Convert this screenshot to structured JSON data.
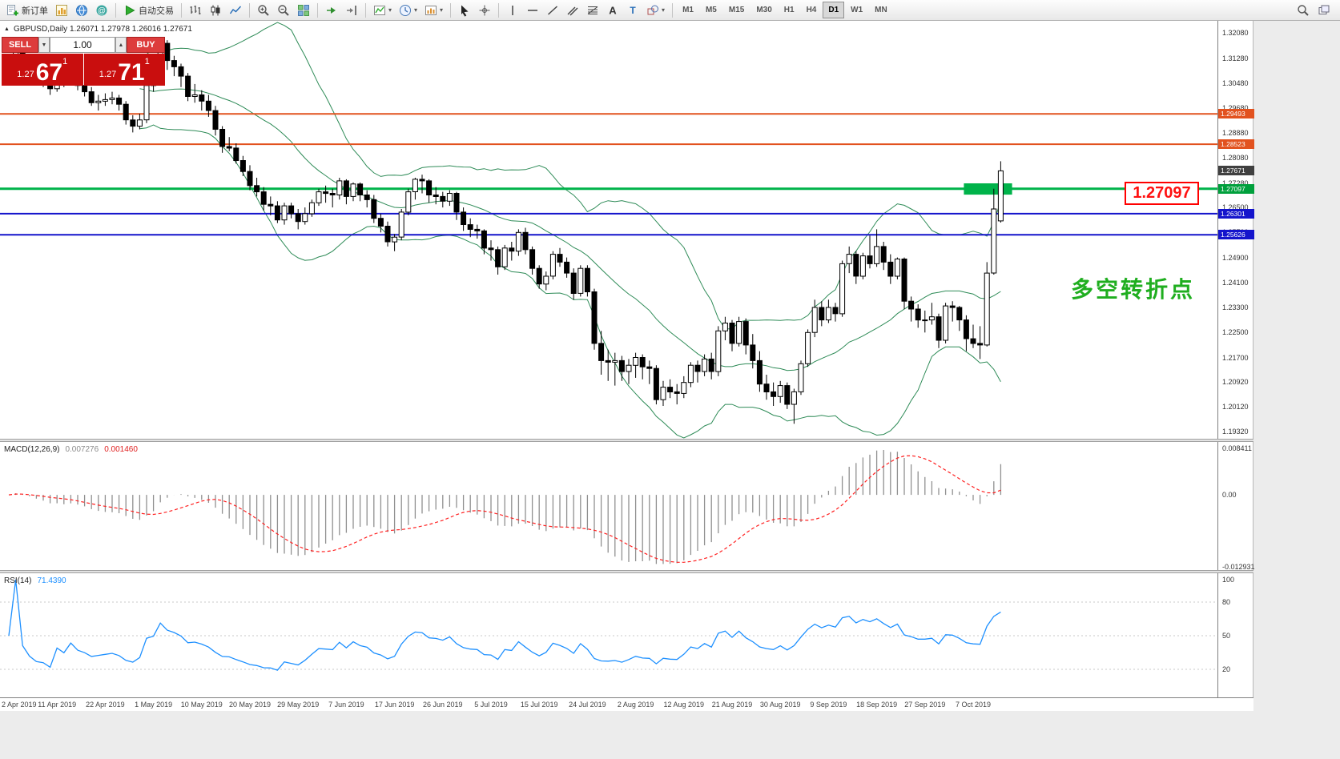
{
  "toolbar": {
    "groups": [
      {
        "items": [
          {
            "icon": "new-order-icon",
            "label": "新订单"
          },
          {
            "icon": "new-chart-icon"
          },
          {
            "icon": "market-depth-icon"
          },
          {
            "icon": "community-icon"
          }
        ]
      },
      {
        "items": [
          {
            "icon": "autotrading-icon",
            "label": "自动交易"
          }
        ]
      },
      {
        "items": [
          {
            "icon": "bar-chart-icon"
          },
          {
            "icon": "candle-chart-icon"
          },
          {
            "icon": "line-chart-icon"
          }
        ]
      },
      {
        "items": [
          {
            "icon": "zoom-in-icon"
          },
          {
            "icon": "zoom-out-icon"
          },
          {
            "icon": "tile-windows-icon"
          }
        ]
      },
      {
        "items": [
          {
            "icon": "auto-scroll-icon"
          },
          {
            "icon": "chart-shift-icon"
          }
        ]
      },
      {
        "items": [
          {
            "icon": "indicators-icon",
            "dropdown": true
          },
          {
            "icon": "periods-icon",
            "dropdown": true
          },
          {
            "icon": "templates-icon",
            "dropdown": true
          }
        ]
      },
      {
        "items": [
          {
            "icon": "cursor-icon"
          },
          {
            "icon": "crosshair-icon"
          }
        ]
      },
      {
        "items": [
          {
            "icon": "vertical-line-icon"
          },
          {
            "icon": "horizontal-line-icon"
          },
          {
            "icon": "trendline-icon"
          },
          {
            "icon": "channel-icon"
          },
          {
            "icon": "fibonacci-icon"
          },
          {
            "icon": "text-icon"
          },
          {
            "icon": "label-icon"
          },
          {
            "icon": "shapes-icon",
            "dropdown": true
          }
        ]
      }
    ],
    "timeframes": [
      "M1",
      "M5",
      "M15",
      "M30",
      "H1",
      "H4",
      "D1",
      "W1",
      "MN"
    ],
    "active_timeframe": "D1",
    "right_icons": [
      "search-icon",
      "windows-icon"
    ]
  },
  "chart": {
    "type": "candlestick",
    "symbol_info": "GBPUSD,Daily  1.26071 1.27978 1.26016 1.27671",
    "trade_panel": {
      "sell": "SELL",
      "buy": "BUY",
      "volume": "1.00",
      "sell_prefix": "1.27",
      "sell_big": "67",
      "sell_sup": "1",
      "buy_prefix": "1.27",
      "buy_big": "71",
      "buy_sup": "1"
    },
    "annotation": {
      "text": "多空转折点",
      "color": "#1fae1f"
    },
    "highlight_label": "1.27097",
    "scale": {
      "top": 1.3247,
      "bottom": 1.191
    },
    "axis_ticks": [
      "1.32080",
      "1.31280",
      "1.30480",
      "1.29680",
      "1.28880",
      "1.28080",
      "1.27280",
      "1.26500",
      "1.25700",
      "1.24900",
      "1.24100",
      "1.23300",
      "1.22500",
      "1.21700",
      "1.20920",
      "1.20120",
      "1.19320"
    ],
    "price_tags": [
      {
        "price": 1.29493,
        "text": "1.29493",
        "bg": "#e2521f"
      },
      {
        "price": 1.28523,
        "text": "1.28523",
        "bg": "#e2521f"
      },
      {
        "price": 1.27671,
        "text": "1.27671",
        "bg": "#404040"
      },
      {
        "price": 1.27097,
        "text": "1.27097",
        "bg": "#00a03c"
      },
      {
        "price": 1.26301,
        "text": "1.26301",
        "bg": "#1414cc"
      },
      {
        "price": 1.25626,
        "text": "1.25626",
        "bg": "#1414cc"
      }
    ],
    "hlines": [
      {
        "price": 1.29493,
        "color": "#e2521f",
        "width": 2
      },
      {
        "price": 1.28523,
        "color": "#e2521f",
        "width": 2
      },
      {
        "price": 1.27097,
        "color": "#00b34a",
        "width": 3
      },
      {
        "price": 1.26301,
        "color": "#1414cc",
        "width": 2
      },
      {
        "price": 1.25626,
        "color": "#1414cc",
        "width": 2
      }
    ],
    "highlight_rect": {
      "i1": 139,
      "i2": 146,
      "p1": 1.2727,
      "p2": 1.2691,
      "color": "#00b34a"
    },
    "bollinger_color": "#2e8b57",
    "x_labels": [
      "2 Apr 2019",
      "11 Apr 2019",
      "22 Apr 2019",
      "1 May 2019",
      "10 May 2019",
      "20 May 2019",
      "29 May 2019",
      "7 Jun 2019",
      "17 Jun 2019",
      "26 Jun 2019",
      "5 Jul 2019",
      "15 Jul 2019",
      "24 Jul 2019",
      "2 Aug 2019",
      "12 Aug 2019",
      "21 Aug 2019",
      "30 Aug 2019",
      "9 Sep 2019",
      "18 Sep 2019",
      "27 Sep 2019",
      "7 Oct 2019"
    ],
    "candles": [
      [
        1.31,
        1.3135,
        1.3075,
        1.312
      ],
      [
        1.312,
        1.3165,
        1.31,
        1.3155
      ],
      [
        1.3155,
        1.316,
        1.3085,
        1.3105
      ],
      [
        1.3105,
        1.312,
        1.306,
        1.308
      ],
      [
        1.308,
        1.31,
        1.3045,
        1.306
      ],
      [
        1.306,
        1.309,
        1.3035,
        1.3055
      ],
      [
        1.3055,
        1.307,
        1.301,
        1.303
      ],
      [
        1.303,
        1.309,
        1.302,
        1.3075
      ],
      [
        1.3075,
        1.3085,
        1.3035,
        1.305
      ],
      [
        1.305,
        1.31,
        1.304,
        1.3085
      ],
      [
        1.3085,
        1.3095,
        1.3025,
        1.304
      ],
      [
        1.304,
        1.306,
        1.3005,
        1.302
      ],
      [
        1.302,
        1.3035,
        1.2975,
        1.2985
      ],
      [
        1.2985,
        1.301,
        1.296,
        1.299
      ],
      [
        1.299,
        1.3015,
        1.2975,
        1.2995
      ],
      [
        1.2995,
        1.302,
        1.298,
        1.3
      ],
      [
        1.3,
        1.301,
        1.296,
        1.298
      ],
      [
        1.298,
        1.299,
        1.2915,
        1.293
      ],
      [
        1.293,
        1.2945,
        1.289,
        1.291
      ],
      [
        1.291,
        1.295,
        1.29,
        1.293
      ],
      [
        1.293,
        1.3045,
        1.292,
        1.304
      ],
      [
        1.304,
        1.3085,
        1.302,
        1.3055
      ],
      [
        1.3055,
        1.319,
        1.3045,
        1.3175
      ],
      [
        1.3175,
        1.3185,
        1.309,
        1.312
      ],
      [
        1.312,
        1.3135,
        1.307,
        1.31
      ],
      [
        1.31,
        1.311,
        1.3035,
        1.307
      ],
      [
        1.307,
        1.308,
        1.299,
        1.3005
      ],
      [
        1.3005,
        1.3045,
        1.2985,
        1.301
      ],
      [
        1.301,
        1.3025,
        1.296,
        1.299
      ],
      [
        1.299,
        1.301,
        1.294,
        1.296
      ],
      [
        1.296,
        1.2975,
        1.288,
        1.29
      ],
      [
        1.29,
        1.291,
        1.2825,
        1.2845
      ],
      [
        1.2845,
        1.2875,
        1.283,
        1.284
      ],
      [
        1.284,
        1.2855,
        1.279,
        1.28
      ],
      [
        1.28,
        1.2815,
        1.275,
        1.2765
      ],
      [
        1.2765,
        1.2785,
        1.2705,
        1.272
      ],
      [
        1.272,
        1.2745,
        1.2685,
        1.27
      ],
      [
        1.27,
        1.2715,
        1.264,
        1.266
      ],
      [
        1.266,
        1.2685,
        1.2625,
        1.2655
      ],
      [
        1.2655,
        1.267,
        1.26,
        1.261
      ],
      [
        1.261,
        1.2665,
        1.2595,
        1.2655
      ],
      [
        1.2655,
        1.2665,
        1.2615,
        1.263
      ],
      [
        1.263,
        1.2645,
        1.258,
        1.2605
      ],
      [
        1.2605,
        1.265,
        1.2595,
        1.263
      ],
      [
        1.263,
        1.2675,
        1.262,
        1.2665
      ],
      [
        1.2665,
        1.271,
        1.2655,
        1.27
      ],
      [
        1.27,
        1.272,
        1.2665,
        1.2695
      ],
      [
        1.2695,
        1.271,
        1.265,
        1.269
      ],
      [
        1.269,
        1.2745,
        1.2675,
        1.2735
      ],
      [
        1.2735,
        1.274,
        1.266,
        1.2685
      ],
      [
        1.2685,
        1.273,
        1.267,
        1.2725
      ],
      [
        1.2725,
        1.273,
        1.267,
        1.269
      ],
      [
        1.269,
        1.2705,
        1.265,
        1.2675
      ],
      [
        1.2675,
        1.269,
        1.26,
        1.2615
      ],
      [
        1.2615,
        1.263,
        1.257,
        1.259
      ],
      [
        1.259,
        1.2605,
        1.2525,
        1.254
      ],
      [
        1.254,
        1.2565,
        1.251,
        1.2555
      ],
      [
        1.2555,
        1.2645,
        1.2545,
        1.2635
      ],
      [
        1.2635,
        1.271,
        1.2625,
        1.27
      ],
      [
        1.27,
        1.2745,
        1.2675,
        1.274
      ],
      [
        1.274,
        1.2755,
        1.2695,
        1.2735
      ],
      [
        1.2735,
        1.274,
        1.2665,
        1.269
      ],
      [
        1.269,
        1.2715,
        1.266,
        1.2685
      ],
      [
        1.2685,
        1.27,
        1.265,
        1.267
      ],
      [
        1.267,
        1.2705,
        1.2655,
        1.2695
      ],
      [
        1.2695,
        1.27,
        1.261,
        1.2635
      ],
      [
        1.2635,
        1.265,
        1.2575,
        1.2595
      ],
      [
        1.2595,
        1.2615,
        1.2555,
        1.258
      ],
      [
        1.258,
        1.2595,
        1.255,
        1.2575
      ],
      [
        1.2575,
        1.258,
        1.25,
        1.252
      ],
      [
        1.252,
        1.2545,
        1.248,
        1.2515
      ],
      [
        1.2515,
        1.2525,
        1.2435,
        1.246
      ],
      [
        1.246,
        1.253,
        1.245,
        1.252
      ],
      [
        1.252,
        1.254,
        1.248,
        1.251
      ],
      [
        1.251,
        1.258,
        1.2495,
        1.257
      ],
      [
        1.257,
        1.2585,
        1.25,
        1.2515
      ],
      [
        1.2515,
        1.2525,
        1.2435,
        1.2455
      ],
      [
        1.2455,
        1.2465,
        1.239,
        1.2405
      ],
      [
        1.2405,
        1.2445,
        1.2385,
        1.243
      ],
      [
        1.243,
        1.251,
        1.242,
        1.25
      ],
      [
        1.25,
        1.252,
        1.246,
        1.2475
      ],
      [
        1.2475,
        1.249,
        1.2425,
        1.244
      ],
      [
        1.244,
        1.2455,
        1.2355,
        1.2375
      ],
      [
        1.2375,
        1.2465,
        1.2365,
        1.2455
      ],
      [
        1.2455,
        1.2465,
        1.2365,
        1.238
      ],
      [
        1.238,
        1.239,
        1.2195,
        1.2215
      ],
      [
        1.2215,
        1.2255,
        1.2115,
        1.216
      ],
      [
        1.216,
        1.2195,
        1.2095,
        1.2155
      ],
      [
        1.2155,
        1.2185,
        1.208,
        1.216
      ],
      [
        1.216,
        1.2175,
        1.2095,
        1.2125
      ],
      [
        1.2125,
        1.2165,
        1.2085,
        1.2145
      ],
      [
        1.2145,
        1.2185,
        1.2105,
        1.217
      ],
      [
        1.217,
        1.218,
        1.21,
        1.214
      ],
      [
        1.214,
        1.216,
        1.2085,
        1.2135
      ],
      [
        1.2135,
        1.2145,
        1.202,
        1.2035
      ],
      [
        1.2035,
        1.2095,
        1.2015,
        1.2075
      ],
      [
        1.2075,
        1.21,
        1.204,
        1.206
      ],
      [
        1.206,
        1.2085,
        1.202,
        1.2055
      ],
      [
        1.2055,
        1.211,
        1.204,
        1.209
      ],
      [
        1.209,
        1.2155,
        1.2075,
        1.2145
      ],
      [
        1.2145,
        1.216,
        1.209,
        1.2125
      ],
      [
        1.2125,
        1.218,
        1.211,
        1.2165
      ],
      [
        1.2165,
        1.2185,
        1.21,
        1.2125
      ],
      [
        1.2125,
        1.227,
        1.211,
        1.2255
      ],
      [
        1.2255,
        1.23,
        1.2225,
        1.228
      ],
      [
        1.228,
        1.229,
        1.219,
        1.2215
      ],
      [
        1.2215,
        1.23,
        1.2205,
        1.2285
      ],
      [
        1.2285,
        1.2295,
        1.218,
        1.221
      ],
      [
        1.221,
        1.2245,
        1.2135,
        1.216
      ],
      [
        1.216,
        1.219,
        1.206,
        1.2085
      ],
      [
        1.2085,
        1.2115,
        1.2035,
        1.206
      ],
      [
        1.206,
        1.209,
        1.2015,
        1.2045
      ],
      [
        1.2045,
        1.2095,
        1.2025,
        1.208
      ],
      [
        1.208,
        1.209,
        1.2005,
        1.202
      ],
      [
        1.202,
        1.207,
        1.1958,
        1.206
      ],
      [
        1.206,
        1.216,
        1.205,
        1.215
      ],
      [
        1.215,
        1.226,
        1.214,
        1.225
      ],
      [
        1.225,
        1.2355,
        1.2235,
        1.233
      ],
      [
        1.233,
        1.235,
        1.227,
        1.229
      ],
      [
        1.229,
        1.2355,
        1.228,
        1.233
      ],
      [
        1.233,
        1.2345,
        1.2285,
        1.231
      ],
      [
        1.231,
        1.248,
        1.23,
        1.247
      ],
      [
        1.247,
        1.2525,
        1.244,
        1.25
      ],
      [
        1.25,
        1.251,
        1.2405,
        1.243
      ],
      [
        1.243,
        1.2505,
        1.242,
        1.2495
      ],
      [
        1.2495,
        1.256,
        1.2455,
        1.247
      ],
      [
        1.247,
        1.258,
        1.246,
        1.2525
      ],
      [
        1.2525,
        1.254,
        1.245,
        1.2475
      ],
      [
        1.2475,
        1.25,
        1.2405,
        1.243
      ],
      [
        1.243,
        1.249,
        1.242,
        1.2485
      ],
      [
        1.2485,
        1.249,
        1.2325,
        1.235
      ],
      [
        1.235,
        1.2365,
        1.2285,
        1.2325
      ],
      [
        1.2325,
        1.234,
        1.2265,
        1.229
      ],
      [
        1.229,
        1.232,
        1.225,
        1.229
      ],
      [
        1.229,
        1.2345,
        1.2275,
        1.23
      ],
      [
        1.23,
        1.231,
        1.22,
        1.2225
      ],
      [
        1.2225,
        1.2345,
        1.2215,
        1.2335
      ],
      [
        1.2335,
        1.235,
        1.2285,
        1.233
      ],
      [
        1.233,
        1.2335,
        1.2255,
        1.229
      ],
      [
        1.229,
        1.2305,
        1.219,
        1.223
      ],
      [
        1.223,
        1.2275,
        1.22,
        1.2215
      ],
      [
        1.2215,
        1.227,
        1.2165,
        1.221
      ],
      [
        1.221,
        1.2475,
        1.2205,
        1.244
      ],
      [
        1.244,
        1.271,
        1.2435,
        1.2645
      ],
      [
        1.26071,
        1.27978,
        1.26016,
        1.27671
      ]
    ]
  },
  "macd": {
    "name": "MACD(12,26,9)",
    "value_main": "0.007276",
    "value_signal": "0.001460",
    "axis": {
      "max": "0.008411",
      "zero": "0.00",
      "min": "-0.012931"
    },
    "scale": {
      "max": 0.0095,
      "min": -0.0135
    },
    "colors": {
      "histogram": "#909090",
      "signal": "#ff2020"
    }
  },
  "rsi": {
    "name": "RSI(14)",
    "value": "71.4390",
    "axis_labels": [
      "100",
      "80",
      "50",
      "20"
    ],
    "levels": [
      80,
      50,
      20
    ],
    "color": "#1e90ff"
  }
}
